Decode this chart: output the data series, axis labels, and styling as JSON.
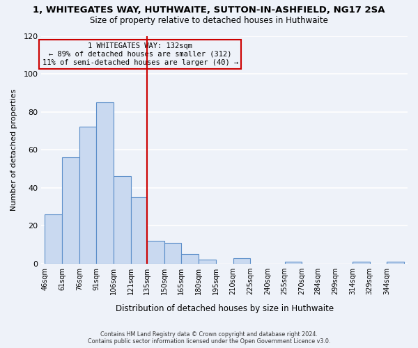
{
  "title": "1, WHITEGATES WAY, HUTHWAITE, SUTTON-IN-ASHFIELD, NG17 2SA",
  "subtitle": "Size of property relative to detached houses in Huthwaite",
  "xlabel": "Distribution of detached houses by size in Huthwaite",
  "ylabel": "Number of detached properties",
  "bin_labels": [
    "46sqm",
    "61sqm",
    "76sqm",
    "91sqm",
    "106sqm",
    "121sqm",
    "135sqm",
    "150sqm",
    "165sqm",
    "180sqm",
    "195sqm",
    "210sqm",
    "225sqm",
    "240sqm",
    "255sqm",
    "270sqm",
    "284sqm",
    "299sqm",
    "314sqm",
    "329sqm",
    "344sqm"
  ],
  "bin_edges": [
    46,
    61,
    76,
    91,
    106,
    121,
    135,
    150,
    165,
    180,
    195,
    210,
    225,
    240,
    255,
    270,
    284,
    299,
    314,
    329,
    344
  ],
  "bar_heights": [
    26,
    56,
    72,
    85,
    46,
    35,
    12,
    11,
    5,
    2,
    0,
    3,
    0,
    0,
    1,
    0,
    0,
    0,
    1,
    0,
    1
  ],
  "bar_color": "#c9d9f0",
  "bar_edge_color": "#5b8ec9",
  "vline_x": 135,
  "vline_color": "#cc0000",
  "annotation_line1": "1 WHITEGATES WAY: 132sqm",
  "annotation_line2": "← 89% of detached houses are smaller (312)",
  "annotation_line3": "11% of semi-detached houses are larger (40) →",
  "annotation_box_color": "#cc0000",
  "ylim": [
    0,
    120
  ],
  "yticks": [
    0,
    20,
    40,
    60,
    80,
    100,
    120
  ],
  "background_color": "#eef2f9",
  "grid_color": "#ffffff",
  "footer_line1": "Contains HM Land Registry data © Crown copyright and database right 2024.",
  "footer_line2": "Contains public sector information licensed under the Open Government Licence v3.0."
}
